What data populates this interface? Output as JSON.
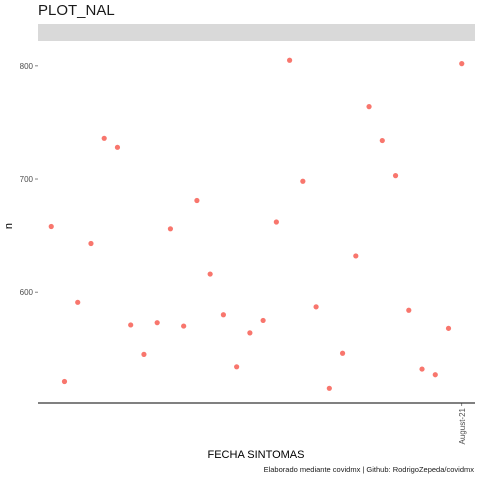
{
  "chart_data": {
    "type": "scatter",
    "title": "PLOT_NAL",
    "facet_strip": "",
    "xlabel": "FECHA SINTOMAS",
    "ylabel": "n",
    "caption": "Elaborado mediante covidmx | Github: RodrigoZepeda/covidmx",
    "point_color": "#F8766D",
    "grid": false,
    "x_tick_labels": [
      "August-21"
    ],
    "y_ticks": [
      600,
      700,
      800
    ],
    "ylim": [
      502,
      822
    ],
    "series": [
      {
        "x": [
          1,
          2,
          3,
          4,
          5,
          6,
          7,
          8,
          9,
          10,
          11,
          12,
          13,
          14,
          15,
          16,
          17,
          18,
          19,
          20,
          21,
          22,
          23,
          24,
          25,
          26,
          27,
          28,
          29,
          30,
          31,
          32
        ],
        "y": [
          658,
          521,
          591,
          643,
          736,
          728,
          571,
          545,
          573,
          656,
          570,
          681,
          616,
          580,
          534,
          564,
          575,
          662,
          805,
          698,
          587,
          515,
          546,
          632,
          764,
          734,
          703,
          584,
          532,
          527,
          568,
          802
        ]
      }
    ],
    "xlim": [
      0,
      33
    ]
  }
}
